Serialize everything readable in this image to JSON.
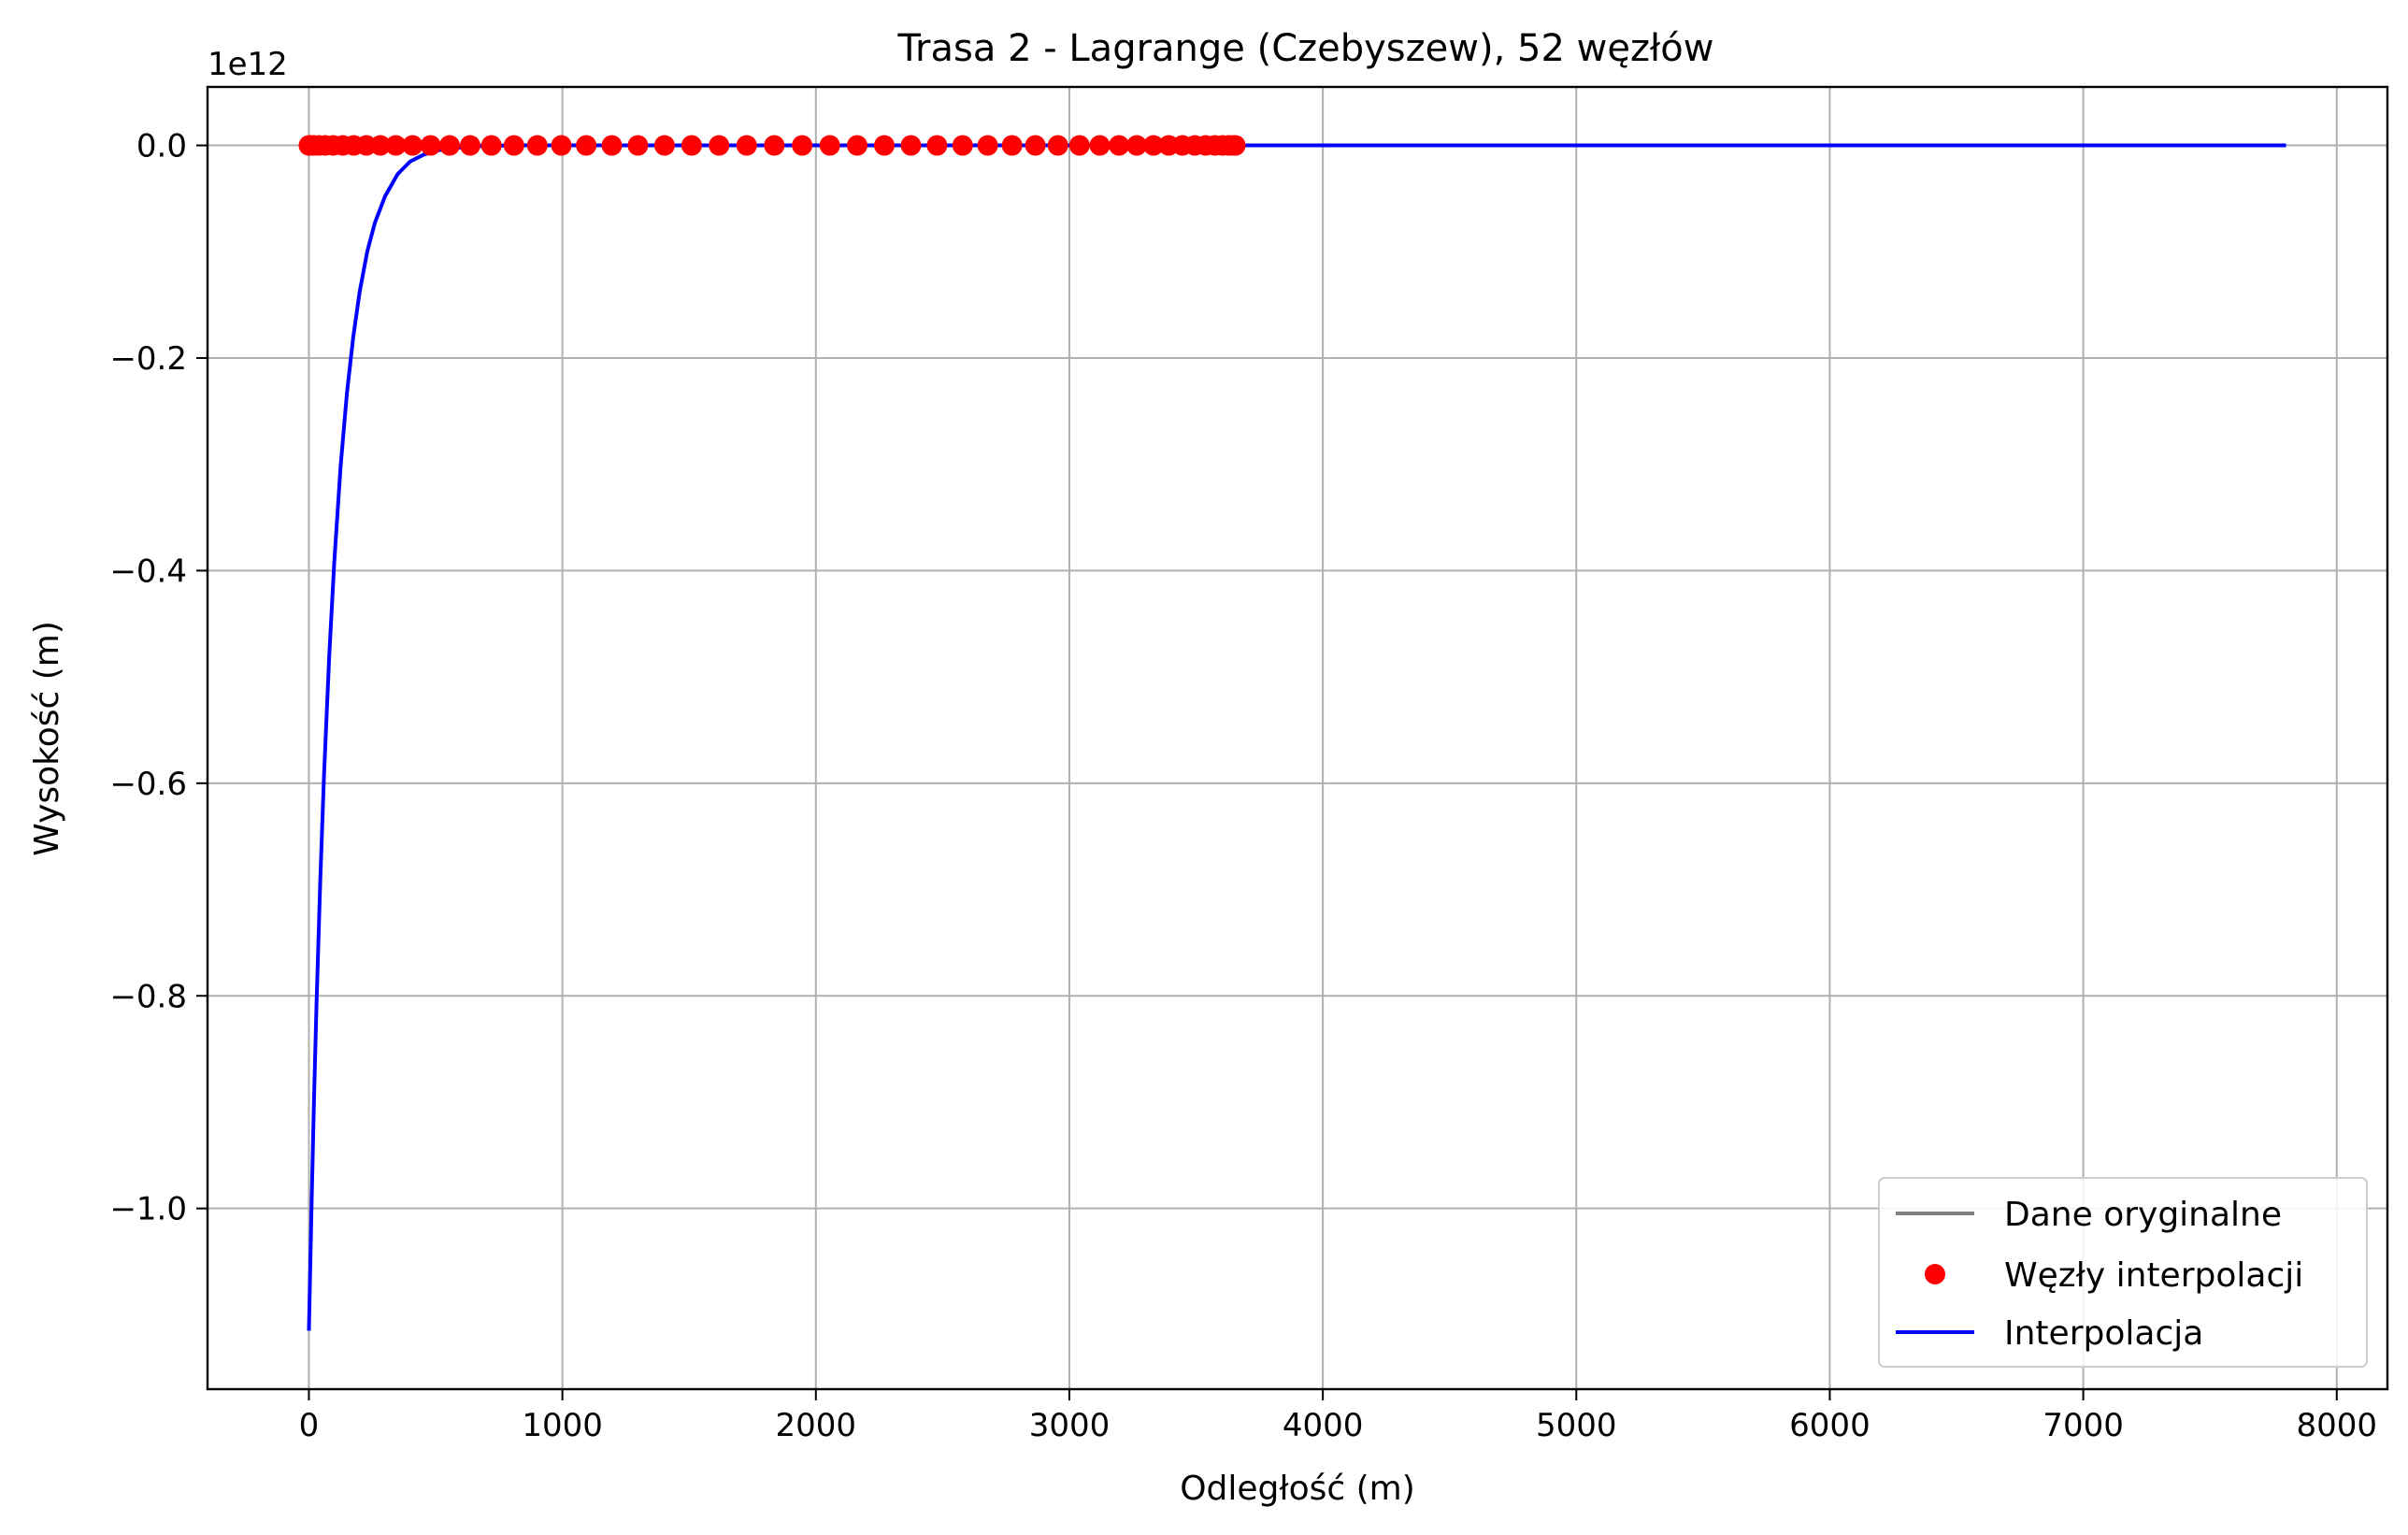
{
  "chart_data": {
    "type": "line",
    "title": "Trasa 2 - Lagrange (Czebyszew), 52 węzłów",
    "xlabel": "Odległość (m)",
    "ylabel": "Wysokość (m)",
    "y_offset_label": "1e12",
    "xlim": [
      -400,
      8200
    ],
    "ylim": [
      -1.17,
      0.055
    ],
    "y_scale_factor": 1000000000000.0,
    "grid": true,
    "legend_position": "lower right",
    "x_ticks": [
      0,
      1000,
      2000,
      3000,
      4000,
      5000,
      6000,
      7000,
      8000
    ],
    "x_tick_labels": [
      "0",
      "1000",
      "2000",
      "3000",
      "4000",
      "5000",
      "6000",
      "7000",
      "8000"
    ],
    "y_ticks": [
      0.0,
      -0.2,
      -0.4,
      -0.6,
      -0.8,
      -1.0
    ],
    "y_tick_labels": [
      "0.0",
      "−0.2",
      "−0.4",
      "−0.6",
      "−0.8",
      "−1.0"
    ],
    "series": [
      {
        "name": "Dane oryginalne",
        "kind": "line",
        "color": "#808080",
        "x": [
          0,
          7800
        ],
        "y": [
          0,
          0
        ]
      },
      {
        "name": "Węzły interpolacji",
        "kind": "markers",
        "color": "#ff0000",
        "x": [
          0,
          7,
          20,
          39,
          64,
          96,
          134,
          177,
          227,
          282,
          343,
          409,
          480,
          555,
          636,
          720,
          809,
          901,
          996,
          1094,
          1195,
          1298,
          1403,
          1510,
          1618,
          1727,
          1836,
          1946,
          2055,
          2163,
          2270,
          2375,
          2478,
          2579,
          2678,
          2774,
          2866,
          2955,
          3040,
          3120,
          3196,
          3266,
          3332,
          3392,
          3446,
          3495,
          3538,
          3574,
          3604,
          3628,
          3645,
          3655
        ],
        "y": [
          0,
          0,
          0,
          0,
          0,
          0,
          0,
          0,
          0,
          0,
          0,
          0,
          0,
          0,
          0,
          0,
          0,
          0,
          0,
          0,
          0,
          0,
          0,
          0,
          0,
          0,
          0,
          0,
          0,
          0,
          0,
          0,
          0,
          0,
          0,
          0,
          0,
          0,
          0,
          0,
          0,
          0,
          0,
          0,
          0,
          0,
          0,
          0,
          0,
          0,
          0,
          0
        ]
      },
      {
        "name": "Interpolacja",
        "kind": "line",
        "color": "#0000ff",
        "x": [
          0,
          10,
          20,
          30,
          45,
          60,
          80,
          100,
          125,
          150,
          175,
          200,
          230,
          260,
          300,
          350,
          400,
          450,
          500,
          550,
          600,
          650,
          700,
          800,
          1000,
          2000,
          4000,
          6000,
          7800
        ],
        "y": [
          -1.115,
          -1.002,
          -0.898,
          -0.808,
          -0.69,
          -0.59,
          -0.481,
          -0.392,
          -0.302,
          -0.233,
          -0.18,
          -0.138,
          -0.1,
          -0.073,
          -0.048,
          -0.027,
          -0.015,
          -0.009,
          -0.005,
          -0.003,
          -0.002,
          -0.001,
          -0.0005,
          0,
          0,
          0,
          0,
          0,
          0
        ]
      }
    ]
  }
}
